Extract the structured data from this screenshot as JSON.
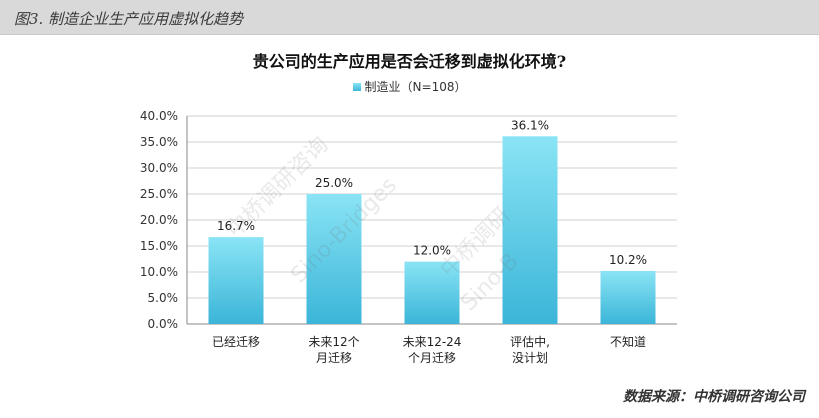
{
  "figure_label": "图3. 制造企业生产应用虚拟化趋势",
  "source_note": "数据来源：中桥调研咨询公司",
  "watermarks": [
    "中桥调研咨询",
    "Sino-Bridges",
    "中桥调研",
    "Sino-B"
  ],
  "colors": {
    "bar_top": "#8ae4f5",
    "bar_bottom": "#3bb5d8",
    "header_bg": "#d9d9d9",
    "grid": "#d0d0d0"
  },
  "chart_data": {
    "type": "bar",
    "title": "贵公司的生产应用是否会迁移到虚拟化环境?",
    "legend_position": "top",
    "series": [
      {
        "name": "制造业（N=108）",
        "values": [
          16.7,
          25.0,
          12.0,
          36.1,
          10.2
        ]
      }
    ],
    "categories": [
      [
        "已经迁移"
      ],
      [
        "未来12个",
        "月迁移"
      ],
      [
        "未来12-24",
        "个月迁移"
      ],
      [
        "评估中,",
        "没计划"
      ],
      [
        "不知道"
      ]
    ],
    "value_labels": [
      "16.7%",
      "25.0%",
      "12.0%",
      "36.1%",
      "10.2%"
    ],
    "yticks": [
      "0.0%",
      "5.0%",
      "10.0%",
      "15.0%",
      "20.0%",
      "25.0%",
      "30.0%",
      "35.0%",
      "40.0%"
    ],
    "ylim": [
      0,
      40
    ],
    "grid": true
  }
}
